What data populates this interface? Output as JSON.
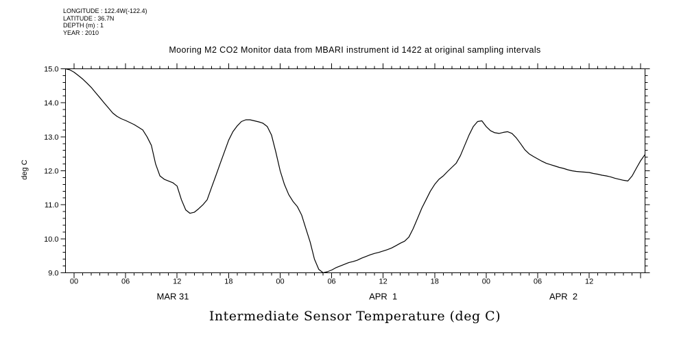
{
  "meta": {
    "longitude": "LONGITUDE : 122.4W(-122.4)",
    "latitude": "LATITUDE : 36.7N",
    "depth": "DEPTH (m) : 1",
    "year": "YEAR : 2010"
  },
  "title": "Mooring M2 CO2 Monitor data from MBARI instrument id 1422 at original sampling intervals",
  "bottom_title": "Intermediate Sensor Temperature (deg C)",
  "colors": {
    "background": "#ffffff",
    "foreground": "#000000"
  },
  "chart_data": {
    "type": "line",
    "title": "Mooring M2 CO2 Monitor data from MBARI instrument id 1422 at original sampling intervals",
    "xlabel": "Intermediate Sensor Temperature (deg C)",
    "ylabel": "deg C",
    "grid": false,
    "legend": "none",
    "ylim": [
      9.0,
      15.0
    ],
    "x_range_hours": [
      -1,
      66.5
    ],
    "x_axis_start_label": "MAR 31 00:00",
    "y_major_ticks": [
      15.0,
      14.0,
      13.0,
      12.0,
      11.0,
      10.0,
      9.0
    ],
    "y_tick_labels": [
      "15.0",
      "14.0",
      "13.0",
      "12.0",
      "11.0",
      "10.0",
      "9.0"
    ],
    "y_minor_step": 0.2,
    "x_major_ticks_hours": [
      0,
      6,
      12,
      18,
      24,
      30,
      36,
      42,
      48,
      54,
      60,
      66
    ],
    "x_tick_labels": [
      "00",
      "06",
      "12",
      "18",
      "00",
      "06",
      "12",
      "18",
      "00",
      "06",
      "12",
      ""
    ],
    "x_minor_step_hours": 1,
    "date_labels": [
      {
        "label": "MAR 31",
        "center_hour": 11.5
      },
      {
        "label": "APR  1",
        "center_hour": 36
      },
      {
        "label": "APR  2",
        "center_hour": 57
      }
    ],
    "line_color": "#000000",
    "series": [
      {
        "name": "intermediate-sensor-temperature",
        "units": "deg C",
        "points": [
          [
            -1,
            15.0
          ],
          [
            -0.5,
            14.97
          ],
          [
            0,
            14.9
          ],
          [
            0.5,
            14.8
          ],
          [
            1,
            14.7
          ],
          [
            1.5,
            14.58
          ],
          [
            2,
            14.45
          ],
          [
            2.5,
            14.3
          ],
          [
            3,
            14.15
          ],
          [
            3.5,
            14.0
          ],
          [
            4,
            13.85
          ],
          [
            4.5,
            13.7
          ],
          [
            5,
            13.6
          ],
          [
            5.5,
            13.53
          ],
          [
            6,
            13.48
          ],
          [
            6.5,
            13.42
          ],
          [
            7,
            13.36
          ],
          [
            7.5,
            13.28
          ],
          [
            8,
            13.2
          ],
          [
            8.5,
            13.0
          ],
          [
            9,
            12.75
          ],
          [
            9.5,
            12.2
          ],
          [
            10,
            11.85
          ],
          [
            10.5,
            11.75
          ],
          [
            11,
            11.7
          ],
          [
            11.5,
            11.65
          ],
          [
            12,
            11.55
          ],
          [
            12.5,
            11.15
          ],
          [
            13,
            10.85
          ],
          [
            13.5,
            10.75
          ],
          [
            14,
            10.78
          ],
          [
            14.5,
            10.88
          ],
          [
            15,
            11.0
          ],
          [
            15.5,
            11.15
          ],
          [
            16,
            11.5
          ],
          [
            16.5,
            11.85
          ],
          [
            17,
            12.2
          ],
          [
            17.5,
            12.55
          ],
          [
            18,
            12.9
          ],
          [
            18.5,
            13.15
          ],
          [
            19,
            13.32
          ],
          [
            19.5,
            13.45
          ],
          [
            20,
            13.5
          ],
          [
            20.5,
            13.5
          ],
          [
            21,
            13.47
          ],
          [
            21.5,
            13.44
          ],
          [
            22,
            13.4
          ],
          [
            22.5,
            13.3
          ],
          [
            23,
            13.05
          ],
          [
            23.5,
            12.55
          ],
          [
            24,
            12.0
          ],
          [
            24.5,
            11.6
          ],
          [
            25,
            11.3
          ],
          [
            25.5,
            11.1
          ],
          [
            26,
            10.95
          ],
          [
            26.5,
            10.7
          ],
          [
            27,
            10.3
          ],
          [
            27.5,
            9.9
          ],
          [
            28,
            9.4
          ],
          [
            28.5,
            9.1
          ],
          [
            29,
            9.0
          ],
          [
            29.5,
            9.03
          ],
          [
            30,
            9.08
          ],
          [
            30.5,
            9.15
          ],
          [
            31,
            9.2
          ],
          [
            31.5,
            9.25
          ],
          [
            32,
            9.3
          ],
          [
            32.5,
            9.33
          ],
          [
            33,
            9.37
          ],
          [
            33.5,
            9.43
          ],
          [
            34,
            9.48
          ],
          [
            34.5,
            9.53
          ],
          [
            35,
            9.57
          ],
          [
            35.5,
            9.6
          ],
          [
            36,
            9.64
          ],
          [
            36.5,
            9.68
          ],
          [
            37,
            9.73
          ],
          [
            37.5,
            9.8
          ],
          [
            38,
            9.87
          ],
          [
            38.5,
            9.93
          ],
          [
            39,
            10.05
          ],
          [
            39.5,
            10.3
          ],
          [
            40,
            10.6
          ],
          [
            40.5,
            10.9
          ],
          [
            41,
            11.15
          ],
          [
            41.5,
            11.4
          ],
          [
            42,
            11.6
          ],
          [
            42.5,
            11.75
          ],
          [
            43,
            11.85
          ],
          [
            43.5,
            11.98
          ],
          [
            44,
            12.1
          ],
          [
            44.5,
            12.22
          ],
          [
            45,
            12.45
          ],
          [
            45.5,
            12.75
          ],
          [
            46,
            13.05
          ],
          [
            46.5,
            13.3
          ],
          [
            47,
            13.45
          ],
          [
            47.5,
            13.47
          ],
          [
            48,
            13.3
          ],
          [
            48.5,
            13.18
          ],
          [
            49,
            13.12
          ],
          [
            49.5,
            13.1
          ],
          [
            50,
            13.13
          ],
          [
            50.5,
            13.15
          ],
          [
            51,
            13.1
          ],
          [
            51.5,
            12.97
          ],
          [
            52,
            12.8
          ],
          [
            52.5,
            12.62
          ],
          [
            53,
            12.5
          ],
          [
            53.5,
            12.42
          ],
          [
            54,
            12.35
          ],
          [
            54.5,
            12.28
          ],
          [
            55,
            12.22
          ],
          [
            55.5,
            12.18
          ],
          [
            56,
            12.14
          ],
          [
            56.5,
            12.1
          ],
          [
            57,
            12.07
          ],
          [
            57.5,
            12.03
          ],
          [
            58,
            12.0
          ],
          [
            58.5,
            11.98
          ],
          [
            59,
            11.97
          ],
          [
            59.5,
            11.96
          ],
          [
            60,
            11.95
          ],
          [
            60.5,
            11.92
          ],
          [
            61,
            11.9
          ],
          [
            61.5,
            11.87
          ],
          [
            62,
            11.85
          ],
          [
            62.5,
            11.82
          ],
          [
            63,
            11.78
          ],
          [
            63.5,
            11.75
          ],
          [
            64,
            11.72
          ],
          [
            64.5,
            11.7
          ],
          [
            65,
            11.85
          ],
          [
            65.5,
            12.08
          ],
          [
            66,
            12.3
          ],
          [
            66.5,
            12.48
          ]
        ]
      }
    ]
  }
}
